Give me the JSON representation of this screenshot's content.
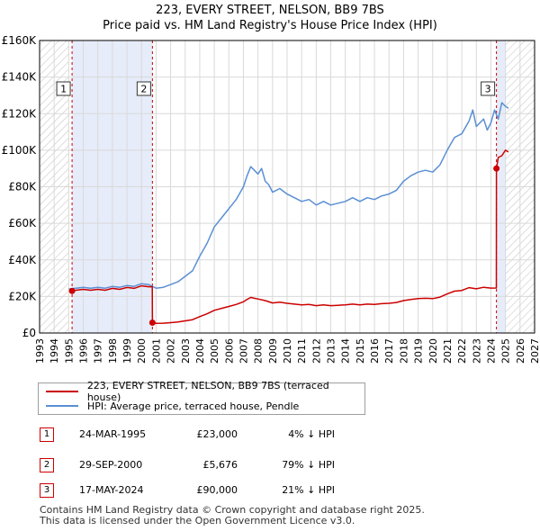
{
  "header": {
    "title": "223, EVERY STREET, NELSON, BB9 7BS",
    "subtitle": "Price paid vs. HM Land Registry's House Price Index (HPI)"
  },
  "legend": {
    "property": "223, EVERY STREET, NELSON, BB9 7BS (terraced house)",
    "hpi": "HPI: Average price, terraced house, Pendle"
  },
  "colors": {
    "property": "#cc0000",
    "hpi": "#5b8fd4",
    "shade": "#e6ecf9",
    "hatch": "#c8c8c8",
    "grid": "#d9d9d9"
  },
  "transactions": [
    {
      "num": "1",
      "date": "24-MAR-1995",
      "price": "£23,000",
      "hpi": "4% ↓ HPI"
    },
    {
      "num": "2",
      "date": "29-SEP-2000",
      "price": "£5,676",
      "hpi": "79% ↓ HPI"
    },
    {
      "num": "3",
      "date": "17-MAY-2024",
      "price": "£90,000",
      "hpi": "21% ↓ HPI"
    }
  ],
  "footer": {
    "line1": "Contains HM Land Registry data © Crown copyright and database right 2025.",
    "line2": "This data is licensed under the Open Government Licence v3.0."
  },
  "chart_data": {
    "type": "line",
    "title": "223, EVERY STREET, NELSON, BB9 7BS",
    "subtitle": "Price paid vs. HM Land Registry's House Price Index (HPI)",
    "xlabel": "",
    "ylabel": "",
    "xlim": [
      1993,
      2027
    ],
    "ylim": [
      0,
      160000
    ],
    "x_ticks": [
      1993,
      1994,
      1995,
      1996,
      1997,
      1998,
      1999,
      2000,
      2001,
      2002,
      2003,
      2004,
      2005,
      2006,
      2007,
      2008,
      2009,
      2010,
      2011,
      2012,
      2013,
      2014,
      2015,
      2016,
      2017,
      2018,
      2019,
      2020,
      2021,
      2022,
      2023,
      2024,
      2025,
      2026,
      2027
    ],
    "y_ticks": [
      {
        "value": 0,
        "label": "£0"
      },
      {
        "value": 20000,
        "label": "£20K"
      },
      {
        "value": 40000,
        "label": "£40K"
      },
      {
        "value": 60000,
        "label": "£60K"
      },
      {
        "value": 80000,
        "label": "£80K"
      },
      {
        "value": 100000,
        "label": "£100K"
      },
      {
        "value": 120000,
        "label": "£120K"
      },
      {
        "value": 140000,
        "label": "£140K"
      },
      {
        "value": 160000,
        "label": "£160K"
      }
    ],
    "shaded_ranges": [
      [
        1995.23,
        2000.75
      ],
      [
        2024.38,
        2025.0
      ]
    ],
    "hatched_ranges": [
      [
        1993,
        1995.0
      ],
      [
        2025.0,
        2027
      ]
    ],
    "sale_markers": [
      {
        "label": "1",
        "x": 1995.23,
        "y": 23000
      },
      {
        "label": "2",
        "x": 2000.75,
        "y": 5676
      },
      {
        "label": "3",
        "x": 2024.38,
        "y": 90000
      }
    ],
    "series": [
      {
        "name": "HPI: Average price, terraced house, Pendle",
        "x": [
          1995.0,
          1995.5,
          1996.0,
          1996.5,
          1997.0,
          1997.5,
          1998.0,
          1998.5,
          1999.0,
          1999.5,
          2000.0,
          2000.5,
          2001.0,
          2001.5,
          2002.0,
          2002.5,
          2003.0,
          2003.5,
          2004.0,
          2004.5,
          2005.0,
          2005.5,
          2006.0,
          2006.5,
          2007.0,
          2007.25,
          2007.5,
          2007.75,
          2008.0,
          2008.25,
          2008.5,
          2008.75,
          2009.0,
          2009.5,
          2010.0,
          2010.5,
          2011.0,
          2011.5,
          2012.0,
          2012.5,
          2013.0,
          2013.5,
          2014.0,
          2014.5,
          2015.0,
          2015.5,
          2016.0,
          2016.5,
          2017.0,
          2017.5,
          2018.0,
          2018.5,
          2019.0,
          2019.5,
          2020.0,
          2020.5,
          2021.0,
          2021.5,
          2022.0,
          2022.5,
          2022.75,
          2023.0,
          2023.25,
          2023.5,
          2023.75,
          2024.0,
          2024.25,
          2024.5,
          2024.75,
          2025.0,
          2025.2
        ],
        "values": [
          24000,
          24500,
          25000,
          24500,
          25000,
          24500,
          25500,
          25000,
          26000,
          25500,
          27000,
          26500,
          24500,
          25000,
          26500,
          28000,
          31000,
          34000,
          42000,
          49000,
          58000,
          63000,
          68000,
          73000,
          80000,
          86000,
          91000,
          89000,
          87000,
          90000,
          83000,
          81000,
          77000,
          79000,
          76000,
          74000,
          72000,
          73000,
          70000,
          72000,
          70000,
          71000,
          72000,
          74000,
          72000,
          74000,
          73000,
          75000,
          76000,
          78000,
          83000,
          86000,
          88000,
          89000,
          88000,
          92000,
          100000,
          107000,
          109000,
          116000,
          122000,
          113000,
          115000,
          117000,
          111000,
          115000,
          122000,
          117000,
          126000,
          124000,
          123000
        ]
      },
      {
        "name": "223, EVERY STREET, NELSON, BB9 7BS (terraced house)",
        "x": [
          1995.23,
          1995.5,
          1996.0,
          1996.5,
          1997.0,
          1997.5,
          1998.0,
          1998.5,
          1999.0,
          1999.5,
          2000.0,
          2000.5,
          2000.74,
          2000.75,
          2001.0,
          2001.5,
          2002.0,
          2002.5,
          2003.0,
          2003.5,
          2004.0,
          2004.5,
          2005.0,
          2005.5,
          2006.0,
          2006.5,
          2007.0,
          2007.25,
          2007.5,
          2007.75,
          2008.0,
          2008.5,
          2009.0,
          2009.5,
          2010.0,
          2010.5,
          2011.0,
          2011.5,
          2012.0,
          2012.5,
          2013.0,
          2013.5,
          2014.0,
          2014.5,
          2015.0,
          2015.5,
          2016.0,
          2016.5,
          2017.0,
          2017.5,
          2018.0,
          2018.5,
          2019.0,
          2019.5,
          2020.0,
          2020.5,
          2021.0,
          2021.5,
          2022.0,
          2022.5,
          2023.0,
          2023.5,
          2024.0,
          2024.37,
          2024.38,
          2024.5,
          2024.75,
          2025.0,
          2025.2
        ],
        "values": [
          23000,
          23400,
          23900,
          23400,
          23900,
          23400,
          24400,
          23900,
          24900,
          24400,
          25800,
          25300,
          25300,
          5676,
          5250,
          5350,
          5670,
          5990,
          6630,
          7270,
          8980,
          10480,
          12400,
          13470,
          14540,
          15600,
          17100,
          18380,
          19450,
          19020,
          18600,
          17740,
          16460,
          16890,
          16250,
          15820,
          15390,
          15600,
          14960,
          15390,
          14960,
          15180,
          15390,
          15820,
          15390,
          15820,
          15600,
          16030,
          16250,
          16670,
          17740,
          18380,
          18810,
          19020,
          18810,
          19660,
          21380,
          22870,
          23300,
          24800,
          24160,
          25010,
          24590,
          24600,
          90000,
          96000,
          97000,
          100000,
          99000
        ]
      }
    ]
  }
}
